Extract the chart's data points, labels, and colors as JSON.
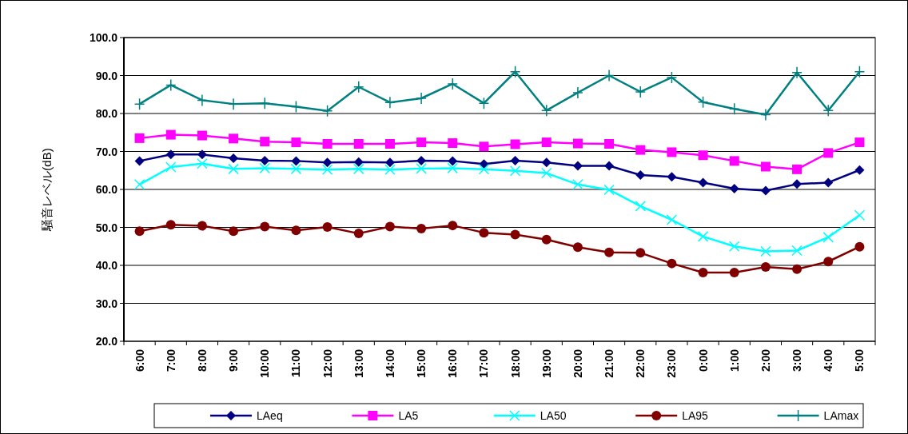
{
  "chart_data": {
    "type": "line",
    "ylabel": "騒音レベル(dB)",
    "categories": [
      "6:00",
      "7:00",
      "8:00",
      "9:00",
      "10:00",
      "11:00",
      "12:00",
      "13:00",
      "14:00",
      "15:00",
      "16:00",
      "17:00",
      "18:00",
      "19:00",
      "20:00",
      "21:00",
      "22:00",
      "23:00",
      "0:00",
      "1:00",
      "2:00",
      "3:00",
      "4:00",
      "5:00"
    ],
    "ylim": [
      20,
      100
    ],
    "yticks": [
      {
        "value": 20,
        "label": "20.0"
      },
      {
        "value": 30,
        "label": "30.0"
      },
      {
        "value": 40,
        "label": "40.0"
      },
      {
        "value": 50,
        "label": "50.0"
      },
      {
        "value": 60,
        "label": "60.0"
      },
      {
        "value": 70,
        "label": "70.0"
      },
      {
        "value": 80,
        "label": "80.0"
      },
      {
        "value": 90,
        "label": "90.0"
      },
      {
        "value": 100,
        "label": "100.0"
      }
    ],
    "grid": "y",
    "legend": "bottom",
    "series": [
      {
        "name": "LAeq",
        "color": "#000080",
        "marker": "diamond",
        "values": [
          67.5,
          69.2,
          69.2,
          68.2,
          67.6,
          67.5,
          67.1,
          67.2,
          67.1,
          67.6,
          67.5,
          66.7,
          67.6,
          67.1,
          66.2,
          66.2,
          63.8,
          63.3,
          61.8,
          60.2,
          59.7,
          61.4,
          61.8,
          65.1
        ]
      },
      {
        "name": "LA5",
        "color": "#ff00ff",
        "marker": "square",
        "values": [
          73.5,
          74.4,
          74.2,
          73.4,
          72.6,
          72.4,
          72.0,
          72.0,
          72.0,
          72.4,
          72.2,
          71.3,
          71.9,
          72.4,
          72.1,
          72.0,
          70.4,
          69.8,
          69.0,
          67.5,
          66.0,
          65.3,
          69.6,
          72.4
        ]
      },
      {
        "name": "LA50",
        "color": "#00ffff",
        "marker": "cross",
        "values": [
          61.3,
          65.9,
          66.8,
          65.4,
          65.6,
          65.4,
          65.2,
          65.4,
          65.2,
          65.5,
          65.6,
          65.3,
          64.9,
          64.3,
          61.3,
          59.9,
          55.6,
          52.0,
          47.6,
          45.0,
          43.7,
          43.9,
          47.4,
          53.2
        ]
      },
      {
        "name": "LA95",
        "color": "#800000",
        "marker": "circle",
        "values": [
          49.0,
          50.7,
          50.4,
          49.0,
          50.2,
          49.2,
          50.1,
          48.4,
          50.2,
          49.7,
          50.5,
          48.6,
          48.1,
          46.8,
          44.8,
          43.4,
          43.3,
          40.5,
          38.1,
          38.1,
          39.6,
          39.0,
          41.0,
          44.9
        ]
      },
      {
        "name": "LAmax",
        "color": "#008080",
        "marker": "plus",
        "values": [
          82.5,
          87.5,
          83.5,
          82.5,
          82.7,
          81.8,
          80.7,
          87.0,
          82.9,
          84.0,
          87.8,
          82.7,
          91.0,
          80.8,
          85.5,
          90.0,
          85.7,
          89.5,
          83.0,
          81.2,
          79.7,
          90.8,
          80.8,
          91.0
        ]
      }
    ]
  }
}
